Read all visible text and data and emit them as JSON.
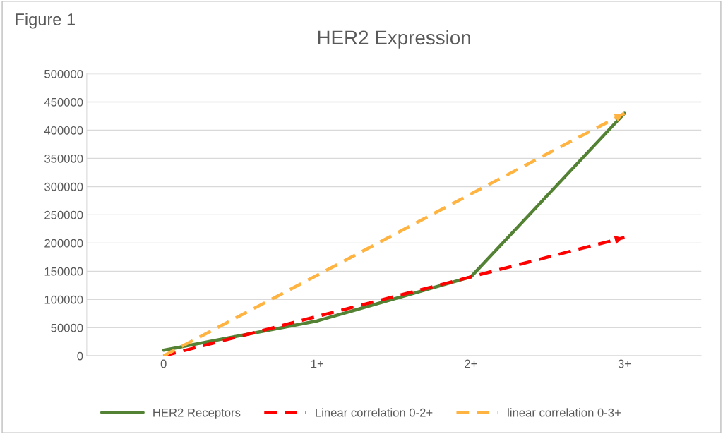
{
  "chart_data": {
    "type": "line",
    "title": "HER2 Expression",
    "annotations": [
      "Figure 1"
    ],
    "categories": [
      "0",
      "1+",
      "2+",
      "3+"
    ],
    "series": [
      {
        "name": "HER2 Receptors",
        "color": "#548235",
        "line_style": "solid",
        "values": [
          10000,
          62000,
          140000,
          430000
        ]
      },
      {
        "name": "Linear correlation 0-2+",
        "color": "#ff0000",
        "line_style": "dashed",
        "values": [
          0,
          70000,
          140000,
          210000
        ]
      },
      {
        "name": "linear correlation 0-3+",
        "color": "#ffb340",
        "line_style": "dashed",
        "values": [
          0,
          143000,
          287000,
          430000
        ]
      }
    ],
    "ylim": [
      0,
      500000
    ],
    "yticks": [
      0,
      50000,
      100000,
      150000,
      200000,
      250000,
      300000,
      350000,
      400000,
      450000,
      500000
    ],
    "grid": "y",
    "legend": "bottom",
    "marker": "none"
  }
}
